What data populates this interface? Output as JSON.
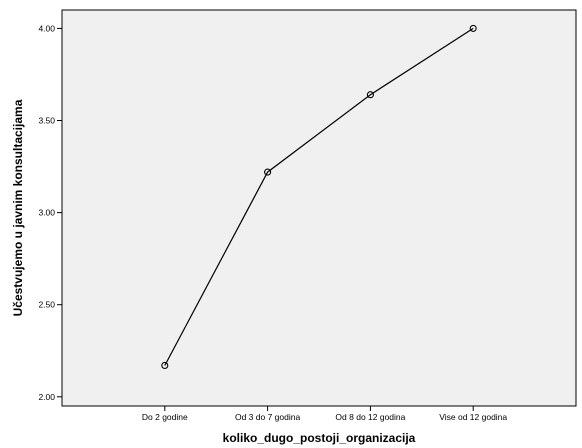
{
  "chart_data": {
    "type": "line",
    "title": "",
    "xlabel": "koliko_dugo_postoji_organizacija",
    "ylabel": "Učestvujemo u javnim konsultacijama",
    "categories": [
      "Do 2 godine",
      "Od 3 do 7 godina",
      "Od 8 do 12 godina",
      "Vise od 12 godina"
    ],
    "series": [
      {
        "values": [
          2.17,
          3.22,
          3.64,
          4.0
        ]
      }
    ],
    "ylim": [
      1.95,
      4.1
    ],
    "yticks": [
      2.0,
      2.5,
      3.0,
      3.5,
      4.0
    ],
    "ytick_labels": [
      "2.00",
      "2.50",
      "3.00",
      "3.50",
      "4.00"
    ],
    "grid": false,
    "markers": "open-circle",
    "colors": {
      "plot_background": "#f0f0f0",
      "line": "#000000",
      "axis": "#000000"
    }
  }
}
